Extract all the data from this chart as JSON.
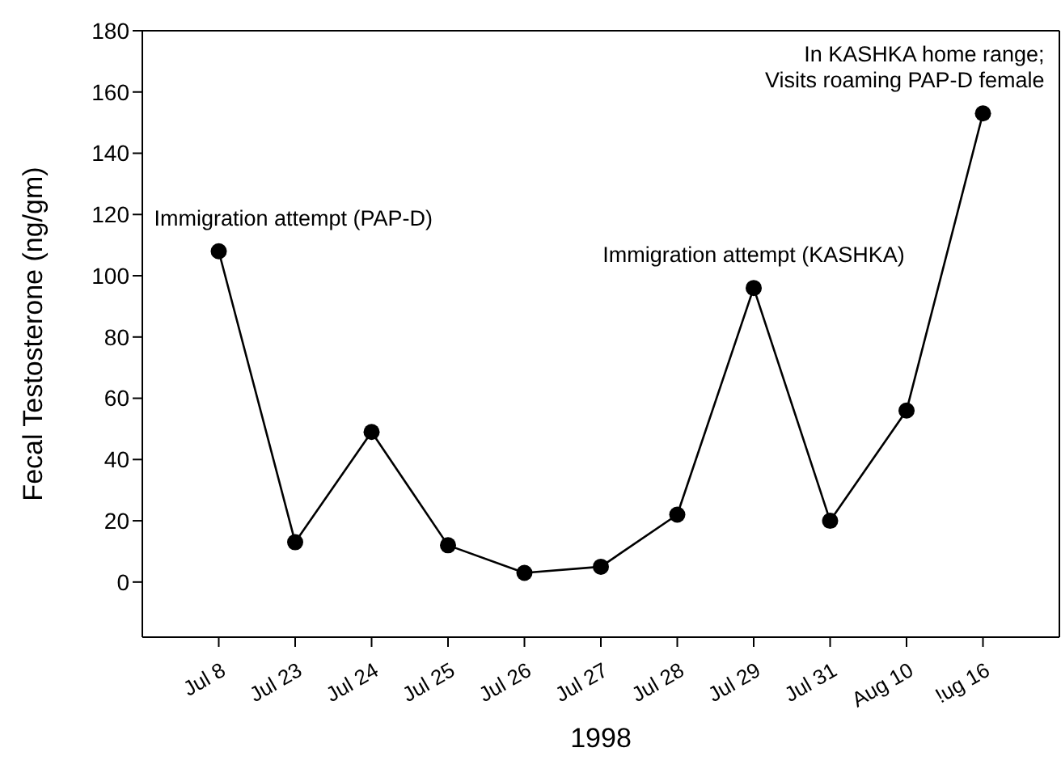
{
  "chart_data": {
    "type": "line",
    "xlabel": "1998",
    "ylabel": "Fecal Testosterone (ng/gm)",
    "categories": [
      "Jul 8",
      "Jul 23",
      "Jul 24",
      "Jul 25",
      "Jul 26",
      "Jul 27",
      "Jul 28",
      "Jul 29",
      "Jul 31",
      "Aug 10",
      "!ug 16"
    ],
    "series": [
      {
        "color": "#000000",
        "values": [
          108,
          13,
          49,
          12,
          3,
          5,
          22,
          96,
          20,
          56,
          153
        ]
      }
    ],
    "ylim": [
      -18,
      180
    ],
    "yticks": [
      0,
      20,
      40,
      60,
      80,
      100,
      120,
      140,
      160,
      180
    ],
    "marker": "circle",
    "line_style": "solid",
    "grid": false,
    "legend": false,
    "annotations": [
      {
        "text": "Immigration attempt (PAP-D)",
        "x": "Jul 8",
        "y": 108
      },
      {
        "text": "Immigration attempt (KASHKA)",
        "x": "Jul 29",
        "y": 96
      },
      {
        "text": "In KASHKA home range;\nVisits roaming PAP-D female",
        "x": "!ug 16",
        "y": 153
      }
    ]
  }
}
